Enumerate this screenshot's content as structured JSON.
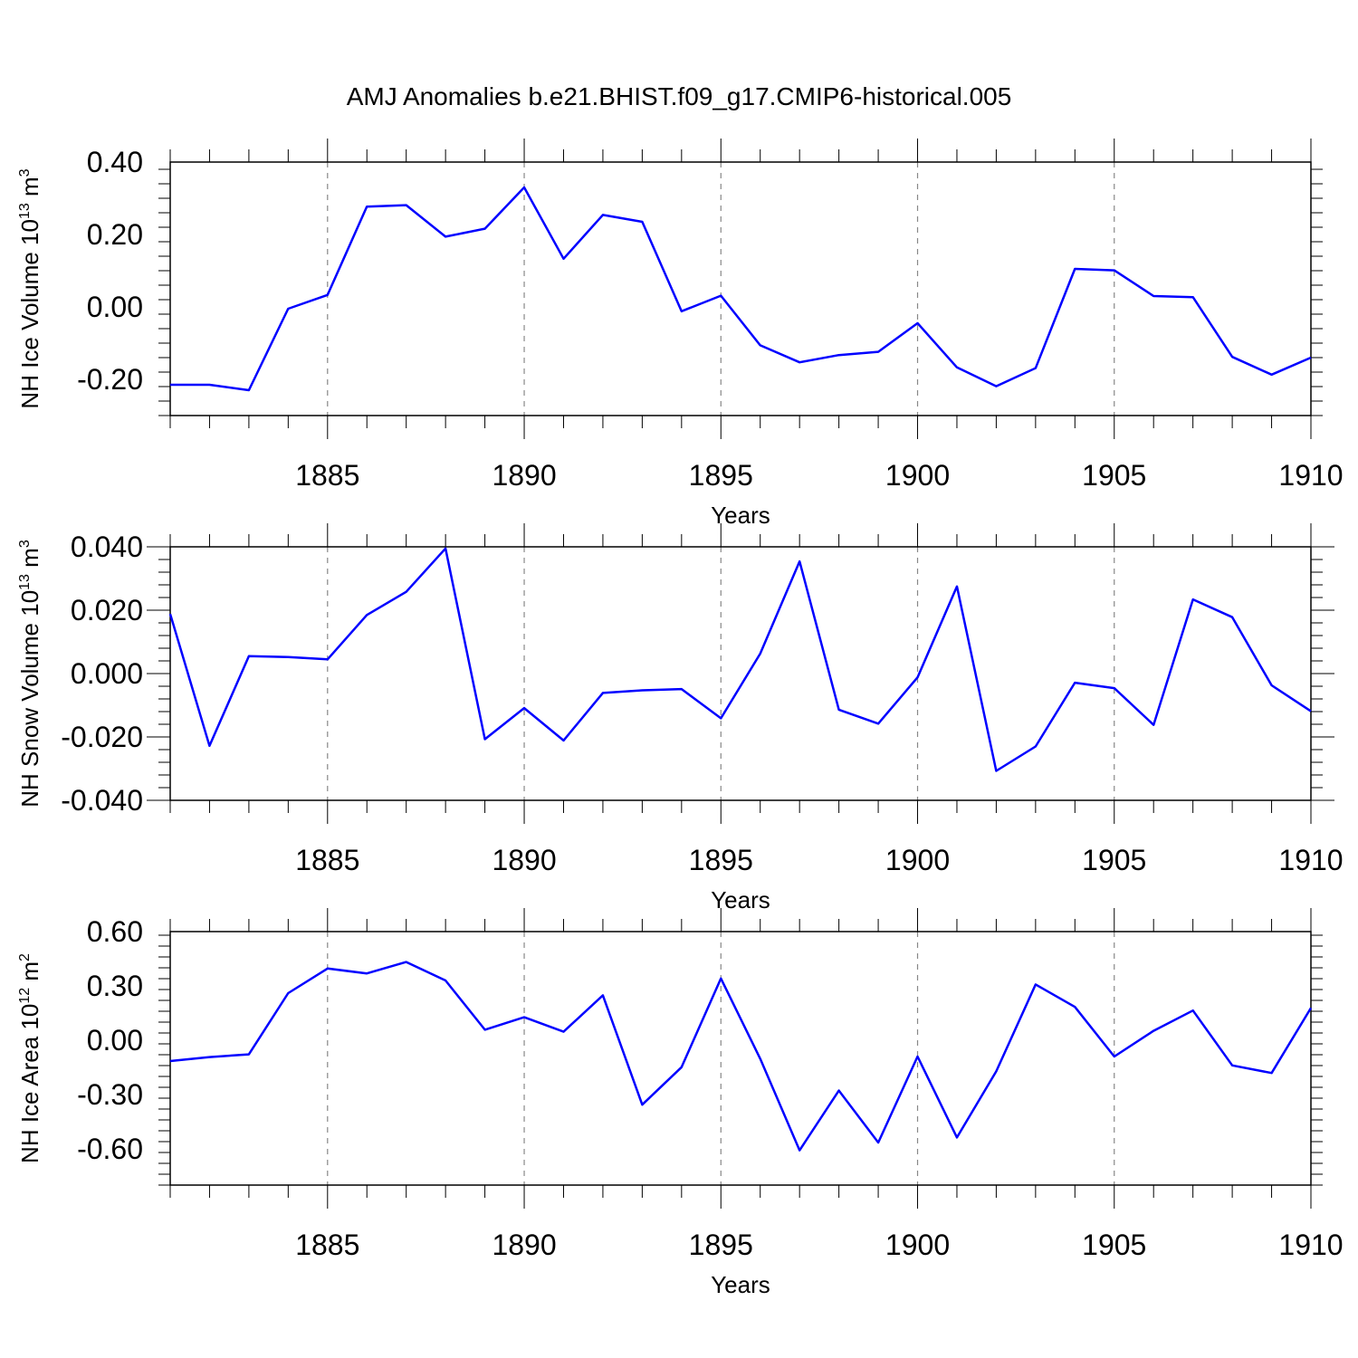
{
  "chart_data": {
    "type": "line",
    "title": "AMJ Anomalies b.e21.BHIST.f09_g17.CMIP6-historical.005",
    "x": [
      1881,
      1882,
      1883,
      1884,
      1885,
      1886,
      1887,
      1888,
      1889,
      1890,
      1891,
      1892,
      1893,
      1894,
      1895,
      1896,
      1897,
      1898,
      1899,
      1900,
      1901,
      1902,
      1903,
      1904,
      1905,
      1906,
      1907,
      1908,
      1909,
      1910
    ],
    "xlim": [
      1881,
      1910
    ],
    "xticks": [
      1885,
      1890,
      1895,
      1900,
      1905,
      1910
    ],
    "xlabel": "Years",
    "line_color": "#0000ff",
    "panels": [
      {
        "ylabel": "NH Ice Volume 10",
        "ylabel_exp": "13",
        "ylabel_unit": "m",
        "ylabel_unit_exp": "3",
        "ylim": [
          -0.3,
          0.4
        ],
        "yticks": [
          -0.2,
          0.0,
          0.2,
          0.4
        ],
        "ytick_labels": [
          "-0.20",
          "0.00",
          "0.20",
          "0.40"
        ],
        "values": [
          -0.215,
          -0.215,
          -0.23,
          -0.005,
          0.033,
          0.277,
          0.281,
          0.194,
          0.216,
          0.33,
          0.133,
          0.254,
          0.235,
          -0.012,
          0.031,
          -0.106,
          -0.153,
          -0.133,
          -0.124,
          -0.045,
          -0.167,
          -0.219,
          -0.169,
          0.105,
          0.101,
          0.03,
          0.027,
          -0.138,
          -0.187,
          -0.14
        ]
      },
      {
        "ylabel": "NH Snow Volume 10",
        "ylabel_exp": "13",
        "ylabel_unit": "m",
        "ylabel_unit_exp": "3",
        "ylim": [
          -0.04,
          0.04
        ],
        "yticks": [
          -0.04,
          -0.02,
          0.0,
          0.02,
          0.04
        ],
        "ytick_labels": [
          "-0.040",
          "-0.020",
          "0.000",
          "0.020",
          "0.040"
        ],
        "values": [
          0.0188,
          -0.0228,
          0.0055,
          0.0052,
          0.0045,
          0.0185,
          0.0258,
          0.0395,
          -0.0207,
          -0.0109,
          -0.0211,
          -0.0061,
          -0.0053,
          -0.0049,
          -0.0141,
          0.0063,
          0.0354,
          -0.0114,
          -0.0158,
          -0.0012,
          0.0275,
          -0.0307,
          -0.023,
          -0.0029,
          -0.0046,
          -0.0162,
          0.0234,
          0.0178,
          -0.0037,
          -0.0119
        ]
      },
      {
        "ylabel": "NH Ice Area 10",
        "ylabel_exp": "12",
        "ylabel_unit": "m",
        "ylabel_unit_exp": "2",
        "ylim": [
          -0.8,
          0.6
        ],
        "yticks": [
          -0.6,
          -0.3,
          0.0,
          0.3,
          0.6
        ],
        "ytick_labels": [
          "-0.60",
          "-0.30",
          "0.00",
          "0.30",
          "0.60"
        ],
        "values": [
          -0.115,
          -0.093,
          -0.078,
          0.26,
          0.396,
          0.369,
          0.432,
          0.33,
          0.058,
          0.127,
          0.047,
          0.248,
          -0.356,
          -0.149,
          0.341,
          -0.102,
          -0.608,
          -0.278,
          -0.565,
          -0.09,
          -0.537,
          -0.172,
          0.308,
          0.184,
          -0.09,
          0.052,
          0.164,
          -0.139,
          -0.181,
          0.178
        ]
      }
    ]
  }
}
